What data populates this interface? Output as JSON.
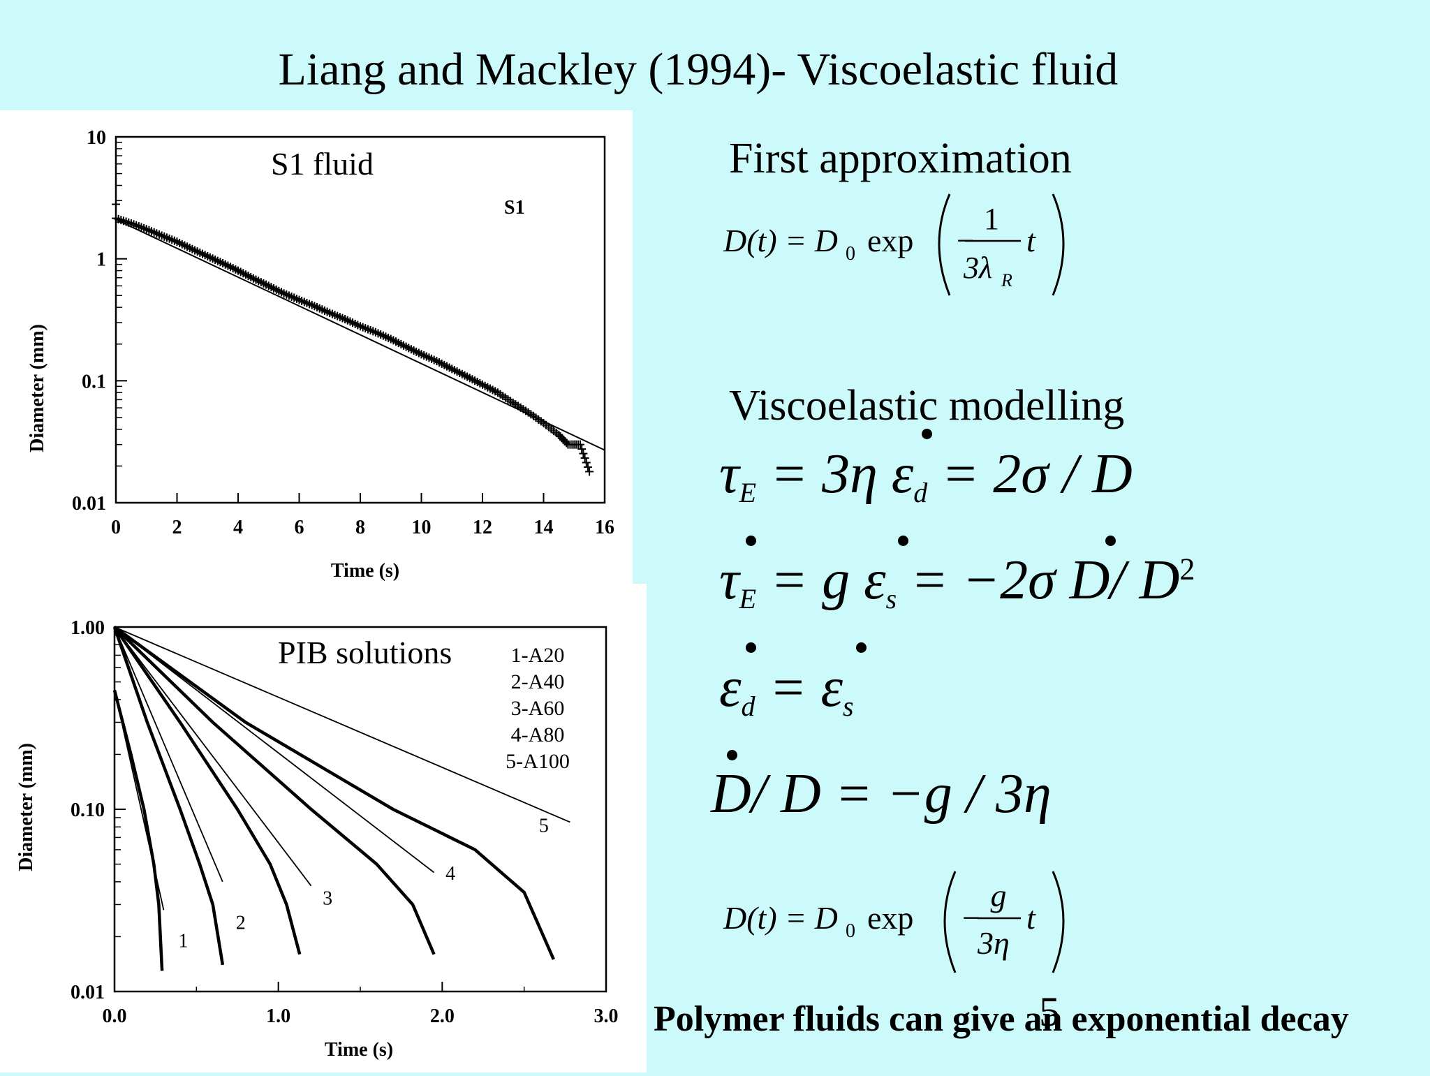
{
  "title": "Liang and Mackley (1994)- Viscoelastic fluid",
  "chart_data": [
    {
      "type": "scatter",
      "annotation": "S1 fluid",
      "legend": [
        "S1"
      ],
      "xlabel": "Time (s)",
      "ylabel": "Diameter (mm)",
      "yscale": "log",
      "xlim": [
        0,
        16
      ],
      "ylim": [
        0.01,
        10
      ],
      "xticks": [
        "0",
        "2",
        "4",
        "6",
        "8",
        "10",
        "12",
        "14",
        "16"
      ],
      "yticks": [
        "0.01",
        "0.1",
        "1",
        "10"
      ],
      "series": [
        {
          "name": "S1",
          "points": [
            [
              0,
              2.8
            ],
            [
              0,
              2.15
            ],
            [
              0.5,
              1.95
            ],
            [
              1,
              1.75
            ],
            [
              1.5,
              1.55
            ],
            [
              2,
              1.38
            ],
            [
              2.5,
              1.2
            ],
            [
              3,
              1.05
            ],
            [
              3.5,
              0.92
            ],
            [
              4,
              0.8
            ],
            [
              4.5,
              0.69
            ],
            [
              5,
              0.6
            ],
            [
              5.5,
              0.52
            ],
            [
              6,
              0.46
            ],
            [
              6.5,
              0.41
            ],
            [
              7,
              0.36
            ],
            [
              7.5,
              0.32
            ],
            [
              8,
              0.28
            ],
            [
              8.5,
              0.25
            ],
            [
              9,
              0.22
            ],
            [
              9.5,
              0.19
            ],
            [
              10,
              0.165
            ],
            [
              10.5,
              0.145
            ],
            [
              11,
              0.125
            ],
            [
              11.5,
              0.108
            ],
            [
              12,
              0.093
            ],
            [
              12.5,
              0.08
            ],
            [
              13,
              0.066
            ],
            [
              13.5,
              0.055
            ],
            [
              14,
              0.045
            ],
            [
              14.5,
              0.036
            ],
            [
              14.8,
              0.03
            ],
            [
              15.2,
              0.03
            ],
            [
              15.5,
              0.018
            ]
          ]
        },
        {
          "name": "fit",
          "points": [
            [
              0,
              2.1
            ],
            [
              16,
              0.027
            ]
          ]
        }
      ]
    },
    {
      "type": "line",
      "annotation": "PIB solutions",
      "legend": [
        "1-A20",
        "2-A40",
        "3-A60",
        "4-A80",
        "5-A100"
      ],
      "xlabel": "Time (s)",
      "ylabel": "Diameter (mm)",
      "yscale": "log",
      "xlim": [
        0,
        3
      ],
      "ylim": [
        0.01,
        1
      ],
      "xticks": [
        "0.0",
        "1.0",
        "2.0",
        "3.0"
      ],
      "yticks": [
        "0.01",
        "0.10",
        "1.00"
      ],
      "series": [
        {
          "name": "1",
          "points": [
            [
              0,
              0.45
            ],
            [
              0.1,
              0.2
            ],
            [
              0.18,
              0.1
            ],
            [
              0.24,
              0.05
            ],
            [
              0.27,
              0.03
            ],
            [
              0.29,
              0.013
            ]
          ]
        },
        {
          "name": "2",
          "points": [
            [
              0,
              1
            ],
            [
              0.2,
              0.3
            ],
            [
              0.4,
              0.1
            ],
            [
              0.52,
              0.05
            ],
            [
              0.6,
              0.03
            ],
            [
              0.66,
              0.014
            ]
          ]
        },
        {
          "name": "3",
          "points": [
            [
              0,
              1
            ],
            [
              0.4,
              0.3
            ],
            [
              0.75,
              0.1
            ],
            [
              0.95,
              0.05
            ],
            [
              1.05,
              0.03
            ],
            [
              1.13,
              0.016
            ]
          ]
        },
        {
          "name": "4",
          "points": [
            [
              0,
              1
            ],
            [
              0.6,
              0.3
            ],
            [
              1.2,
              0.1
            ],
            [
              1.6,
              0.05
            ],
            [
              1.82,
              0.03
            ],
            [
              1.95,
              0.016
            ]
          ]
        },
        {
          "name": "5",
          "points": [
            [
              0,
              1
            ],
            [
              0.8,
              0.3
            ],
            [
              1.7,
              0.1
            ],
            [
              2.2,
              0.06
            ],
            [
              2.5,
              0.035
            ],
            [
              2.68,
              0.015
            ]
          ]
        }
      ],
      "fits": [
        {
          "name": "fit-1",
          "points": [
            [
              0,
              0.45
            ],
            [
              0.3,
              0.028
            ]
          ]
        },
        {
          "name": "fit-2",
          "points": [
            [
              0,
              1
            ],
            [
              0.66,
              0.04
            ]
          ]
        },
        {
          "name": "fit-3",
          "points": [
            [
              0,
              1
            ],
            [
              1.2,
              0.038
            ]
          ]
        },
        {
          "name": "fit-4",
          "points": [
            [
              0,
              1
            ],
            [
              1.95,
              0.045
            ]
          ]
        },
        {
          "name": "fit-5",
          "points": [
            [
              0,
              1
            ],
            [
              2.78,
              0.085
            ]
          ]
        }
      ],
      "curve_labels": [
        {
          "label": "1",
          "x": 0.42,
          "y": 0.0175
        },
        {
          "label": "2",
          "x": 0.77,
          "y": 0.022
        },
        {
          "label": "3",
          "x": 1.3,
          "y": 0.03
        },
        {
          "label": "4",
          "x": 2.05,
          "y": 0.041
        },
        {
          "label": "5",
          "x": 2.62,
          "y": 0.075
        }
      ]
    }
  ],
  "equations": {
    "first_approx_heading": "First approximation",
    "first_approx": {
      "lhs": "D(t) = D",
      "sub": "0",
      "func": " exp",
      "minus": "−",
      "num": "1",
      "den": "3λ",
      "den_sub": "R",
      "var": "t"
    },
    "visco_heading": "Viscoelastic modelling",
    "eq1": "τ_E = 3η ε_d = 2σ / D",
    "eq2": "τ_E = g ε_s = −2σ D/ D^2",
    "eq3": "ε_d = ε_s",
    "eq4": "D/ D = −g / 3η",
    "final": {
      "lhs": "D(t) = D",
      "sub": "0",
      "func": " exp",
      "minus": "−",
      "num": "g",
      "den": "3η",
      "var": "t"
    }
  },
  "conclusion": "Polymer fluids can give an exponential decay",
  "page_number": "5"
}
